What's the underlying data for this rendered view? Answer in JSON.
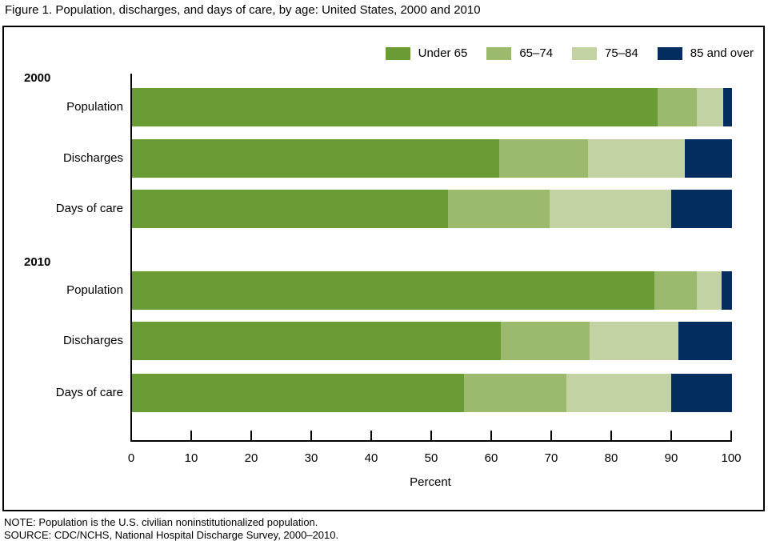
{
  "title": "Figure 1. Population, discharges, and days of care, by age: United States, 2000 and 2010",
  "notes": {
    "note": "NOTE: Population is the U.S. civilian noninstitutionalized population.",
    "source": "SOURCE: CDC/NCHS, National Hospital Discharge Survey, 2000–2010."
  },
  "colors": {
    "under_65": "#6a9c35",
    "age_65_74": "#9cba6e",
    "age_75_84": "#c3d2a2",
    "age_85_over": "#022d5e",
    "axis": "#000000",
    "background": "#ffffff"
  },
  "chart_data": {
    "type": "bar",
    "stacked": true,
    "orientation": "horizontal",
    "title": "Figure 1. Population, discharges, and days of care, by age: United States, 2000 and 2010",
    "xlabel": "Percent",
    "xlim": [
      0,
      100
    ],
    "xticks": [
      0,
      10,
      20,
      30,
      40,
      50,
      60,
      70,
      80,
      90,
      100
    ],
    "grid": false,
    "legend_position": "top-right",
    "series": [
      {
        "name": "Under 65",
        "color": "#6a9c35"
      },
      {
        "name": "65–74",
        "color": "#9cba6e"
      },
      {
        "name": "75–84",
        "color": "#c3d2a2"
      },
      {
        "name": "85 and over",
        "color": "#022d5e"
      }
    ],
    "groups": [
      {
        "year": "2000",
        "rows": [
          {
            "label": "Population",
            "values": [
              87.6,
              6.5,
              4.4,
              1.5
            ]
          },
          {
            "label": "Discharges",
            "values": [
              61.2,
              14.8,
              16.1,
              7.9
            ]
          },
          {
            "label": "Days of care",
            "values": [
              52.6,
              17.0,
              20.3,
              10.1
            ]
          }
        ]
      },
      {
        "year": "2010",
        "rows": [
          {
            "label": "Population",
            "values": [
              87.0,
              7.1,
              4.2,
              1.7
            ]
          },
          {
            "label": "Discharges",
            "values": [
              61.5,
              14.7,
              14.9,
              8.9
            ]
          },
          {
            "label": "Days of care",
            "values": [
              55.3,
              17.1,
              17.5,
              10.1
            ]
          }
        ]
      }
    ]
  }
}
